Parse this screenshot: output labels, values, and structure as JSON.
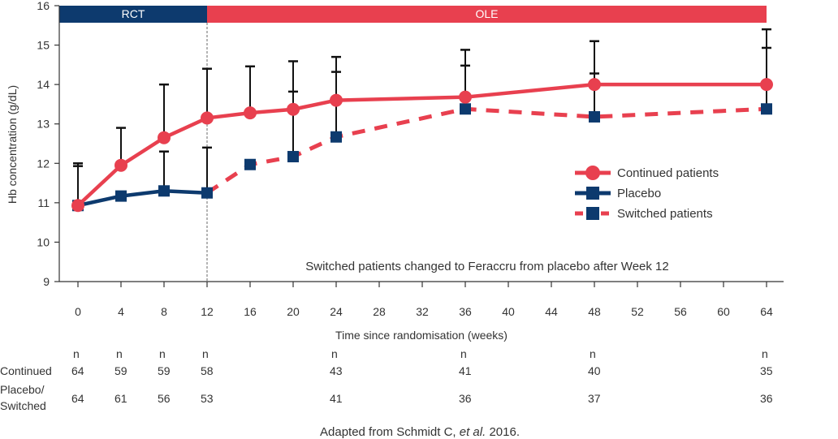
{
  "chart_data": {
    "type": "line",
    "ylabel": "Hb concentration (g/dL)",
    "xlabel": "Time since randomisation (weeks)",
    "ylim": [
      9,
      16
    ],
    "yticks": [
      9,
      10,
      11,
      12,
      13,
      14,
      15,
      16
    ],
    "xlim": [
      0,
      64
    ],
    "xticks": [
      0,
      4,
      8,
      12,
      16,
      20,
      24,
      28,
      32,
      36,
      40,
      44,
      48,
      52,
      56,
      60,
      64
    ],
    "grid": false,
    "legend_position": "right",
    "phases": [
      {
        "label": "RCT",
        "x_start": 0,
        "x_end": 12,
        "color": "#0d3a6e"
      },
      {
        "label": "OLE",
        "x_start": 12,
        "x_end": 64,
        "color": "#e8404f"
      }
    ],
    "phase_divider_x": 12,
    "series": [
      {
        "name": "Continued patients",
        "color": "#e8404f",
        "marker": "circle",
        "dash": "solid",
        "x": [
          0,
          4,
          8,
          12,
          16,
          20,
          24,
          36,
          48,
          64
        ],
        "y": [
          10.93,
          11.95,
          12.65,
          13.15,
          13.28,
          13.37,
          13.6,
          13.68,
          14.0,
          14.0
        ],
        "err": [
          1.07,
          0.95,
          1.35,
          1.25,
          1.18,
          1.22,
          1.1,
          1.2,
          1.1,
          1.4
        ]
      },
      {
        "name": "Placebo",
        "color": "#0d3a6e",
        "marker": "square",
        "dash": "solid",
        "x": [
          0,
          4,
          8,
          12
        ],
        "y": [
          10.93,
          11.17,
          11.3,
          11.25
        ],
        "err": [
          1.0,
          0.0,
          1.0,
          1.15
        ]
      },
      {
        "name": "Switched patients",
        "color": "#e8404f",
        "marker": "square",
        "marker_color": "#0d3a6e",
        "dash": "dashed",
        "x": [
          12,
          16,
          20,
          24,
          36,
          48,
          64
        ],
        "y": [
          11.25,
          11.97,
          12.17,
          12.67,
          13.38,
          13.18,
          13.38
        ],
        "err": [
          0,
          0,
          1.65,
          1.65,
          1.1,
          1.1,
          1.55
        ]
      }
    ],
    "annotations": [
      "Switched patients changed to Feraccru from placebo after Week 12"
    ]
  },
  "n_table": {
    "header": "n",
    "header_x": [
      0,
      4,
      8,
      12,
      24,
      36,
      48,
      64
    ],
    "rows": [
      {
        "label_lines": [
          "Continued"
        ],
        "values": [
          "64",
          "59",
          "59",
          "58",
          "43",
          "41",
          "40",
          "35"
        ]
      },
      {
        "label_lines": [
          "Placebo/",
          "Switched"
        ],
        "values": [
          "64",
          "61",
          "56",
          "53",
          "41",
          "36",
          "37",
          "36"
        ]
      }
    ]
  },
  "source": {
    "prefix": "Adapted from Schmidt C, ",
    "italic": "et al.",
    "suffix": " 2016."
  }
}
